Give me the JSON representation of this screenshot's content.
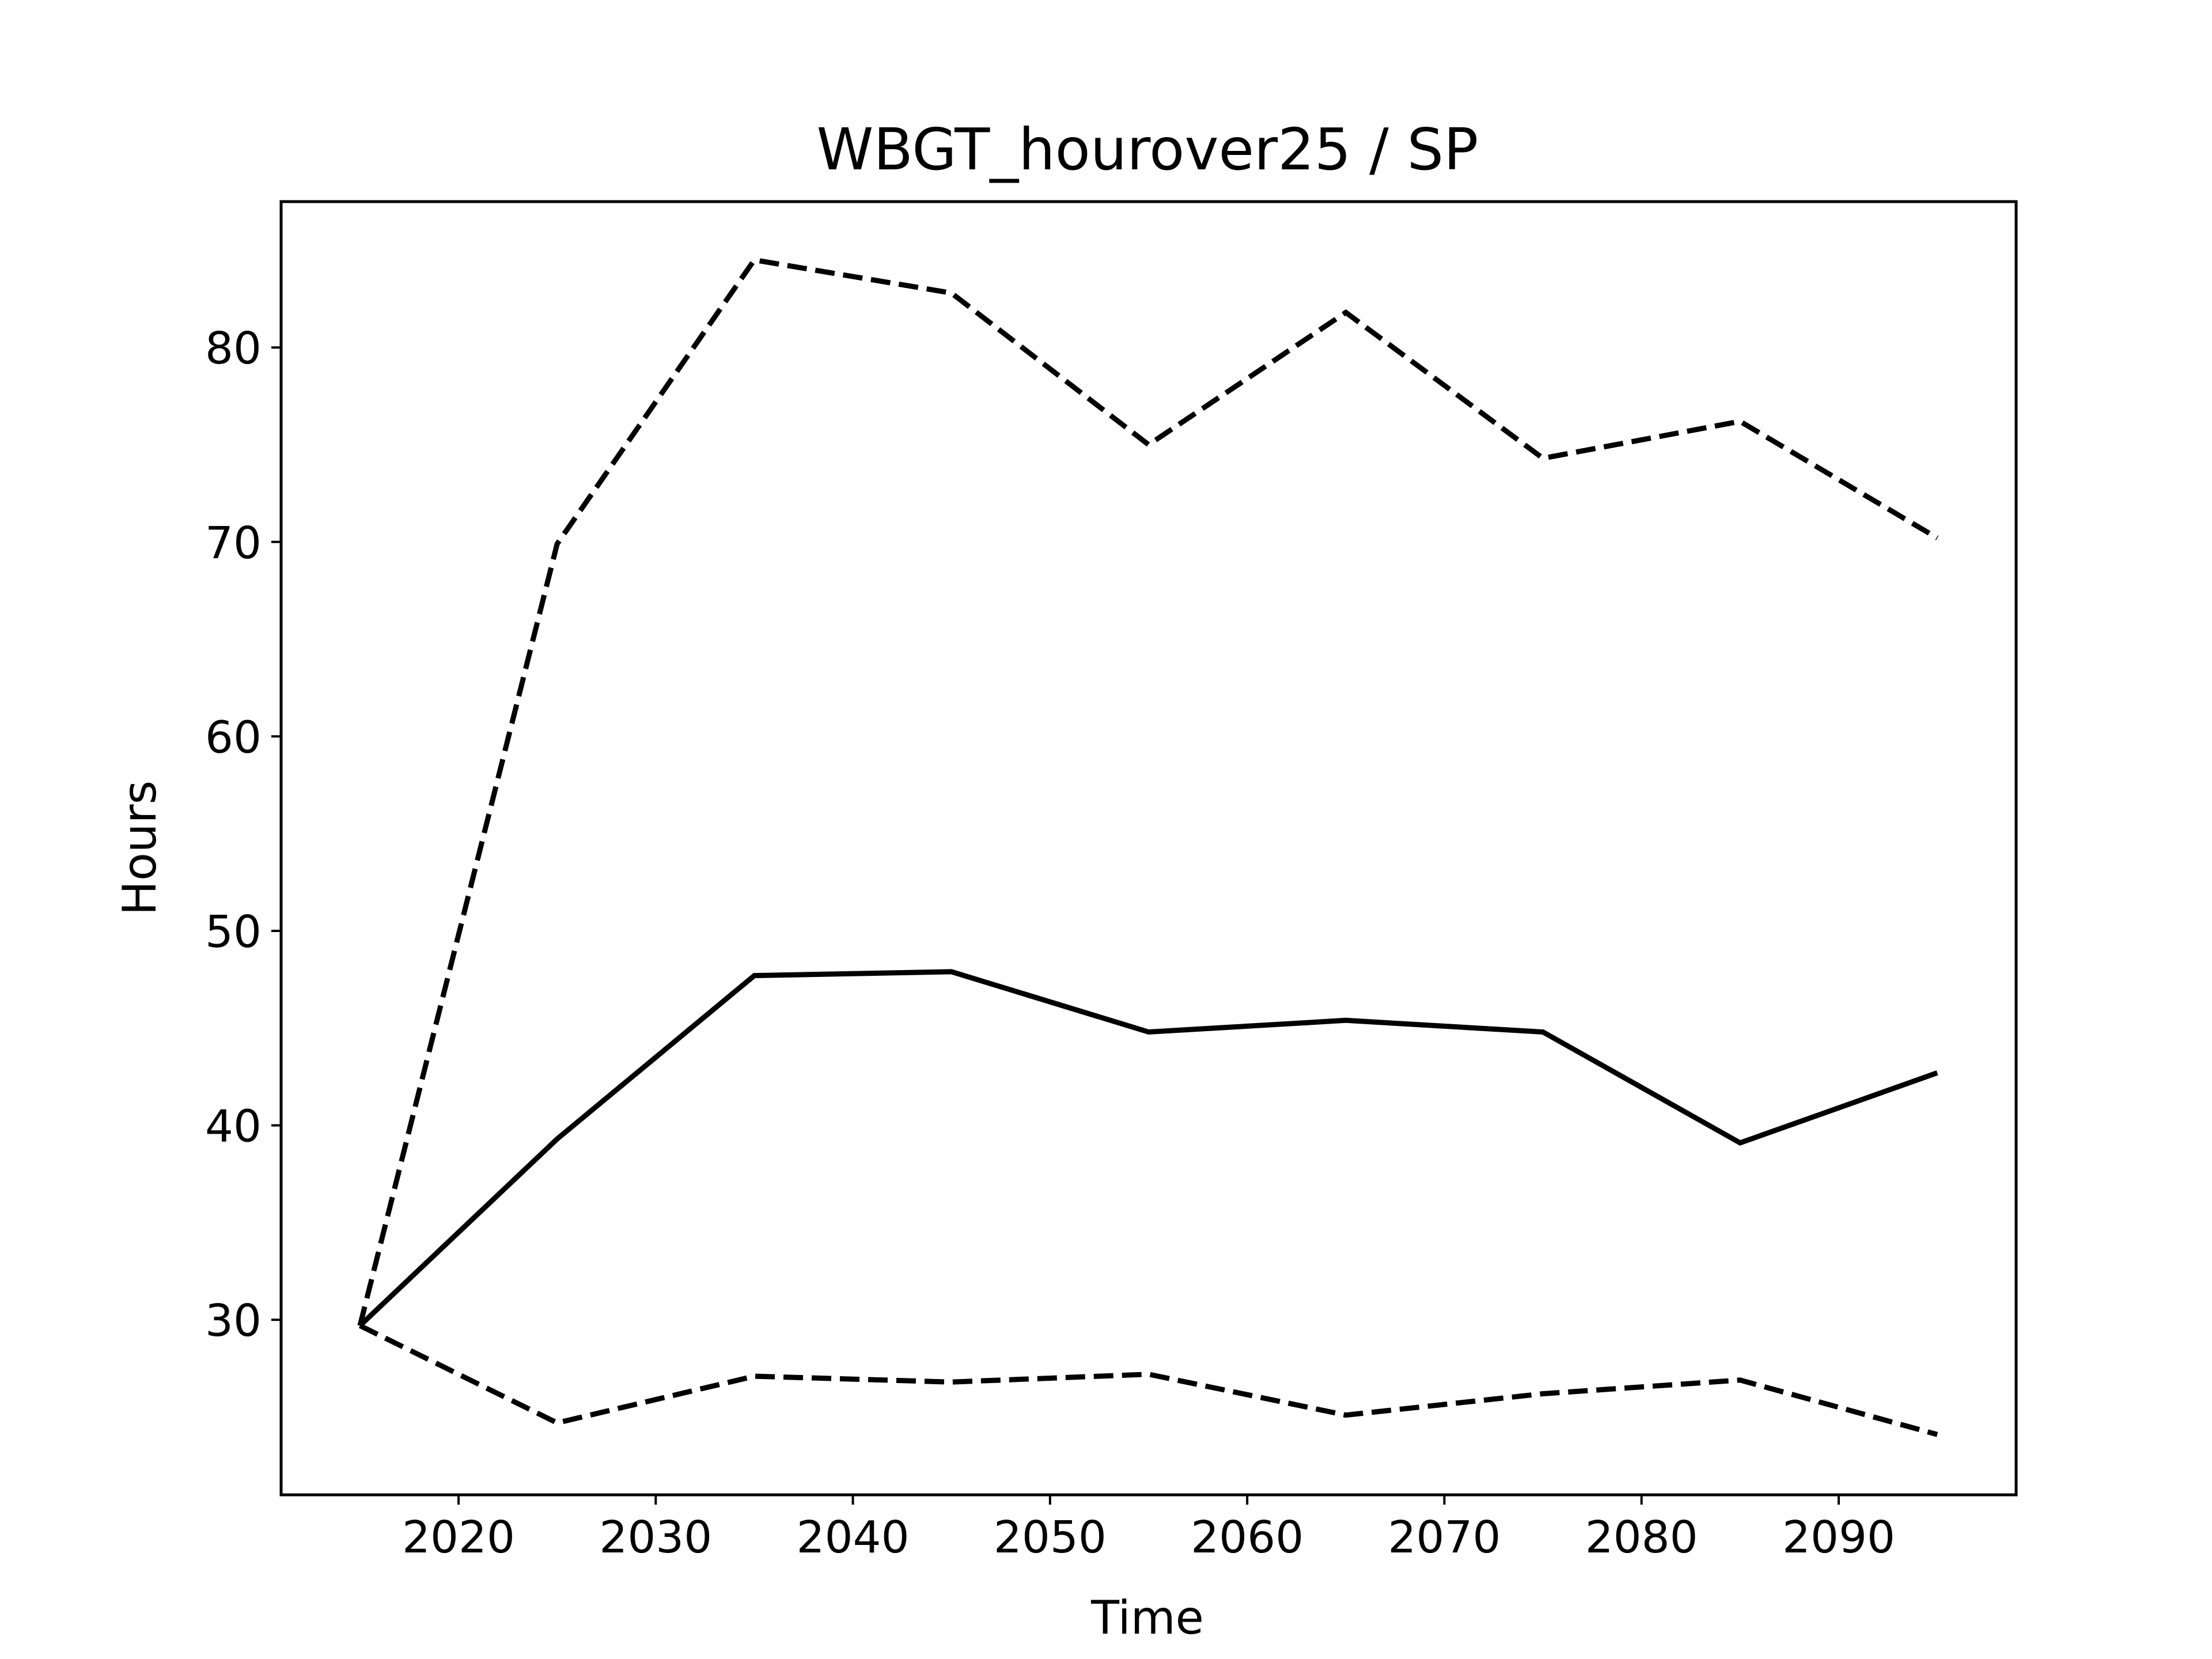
{
  "chart_data": {
    "type": "line",
    "title": "WBGT_hourover25 / SP",
    "xlabel": "Time",
    "ylabel": "Hours",
    "xlim": [
      2011,
      2099
    ],
    "ylim": [
      21.0,
      87.5
    ],
    "xticks": [
      2020,
      2030,
      2040,
      2050,
      2060,
      2070,
      2080,
      2090
    ],
    "yticks": [
      30,
      40,
      50,
      60,
      70,
      80
    ],
    "x": [
      2015,
      2025,
      2035,
      2045,
      2055,
      2065,
      2075,
      2085,
      2095
    ],
    "series": [
      {
        "values": [
          29.7,
          39.3,
          47.7,
          47.9,
          44.8,
          45.4,
          44.8,
          39.1,
          42.7
        ],
        "style": "solid",
        "color": "#000000"
      },
      {
        "values": [
          29.7,
          69.9,
          84.5,
          82.8,
          75.0,
          81.8,
          74.3,
          76.2,
          70.2
        ],
        "style": "dashed",
        "color": "#000000"
      },
      {
        "values": [
          29.7,
          24.7,
          27.1,
          26.8,
          27.2,
          25.1,
          26.2,
          26.9,
          24.1
        ],
        "style": "dashed",
        "color": "#000000"
      }
    ],
    "grid": false,
    "legend": "none"
  }
}
